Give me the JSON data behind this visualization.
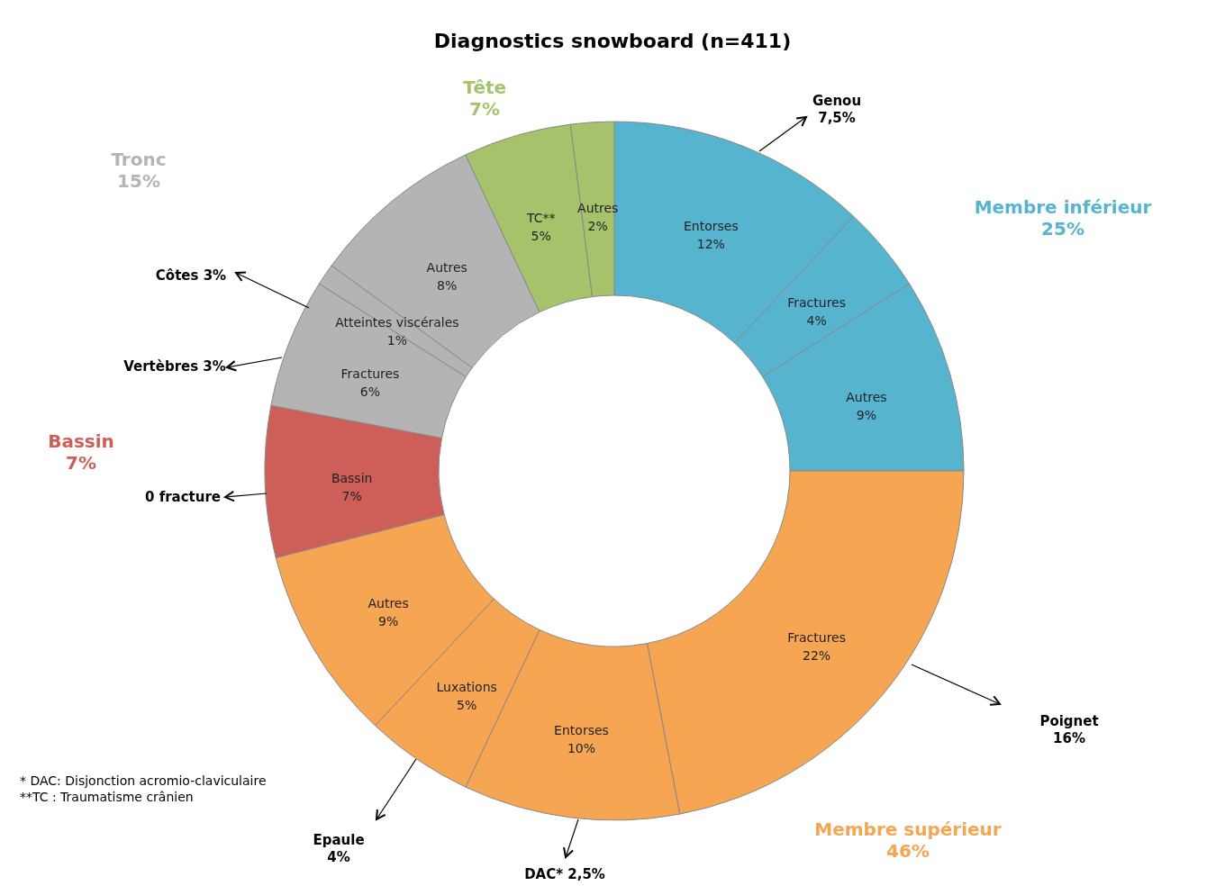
{
  "chart_data": {
    "type": "donut",
    "title": "Diagnostics snowboard (n=411)",
    "categories": [
      "Entorses",
      "Fractures",
      "Autres",
      "Fractures",
      "Entorses",
      "Luxations",
      "Autres",
      "Bassin",
      "Fractures",
      "Atteintes viscérales",
      "Autres",
      "TC**",
      "Autres"
    ],
    "values": [
      12,
      4,
      9,
      22,
      10,
      5,
      9,
      7,
      6,
      1,
      8,
      5,
      2
    ],
    "value_labels": [
      "12%",
      "4%",
      "9%",
      "22%",
      "10%",
      "5%",
      "9%",
      "7%",
      "6%",
      "1%",
      "8%",
      "5%",
      "2%"
    ],
    "colors": [
      "#56b4cf",
      "#56b4cf",
      "#56b4cf",
      "#f6a552",
      "#f6a552",
      "#f6a552",
      "#f6a552",
      "#cd5f58",
      "#b4b4b4",
      "#b4b4b4",
      "#b4b4b4",
      "#a6c26a",
      "#a6c26a"
    ],
    "annotations": [
      "Tête\n7%",
      "Membre inférieur\n25%",
      "Membre  supérieur\n46%",
      "Bassin\n7%",
      "Tronc\n15%",
      "Genou\n7,5%",
      "Poignet\n16%",
      "DAC* 2,5%",
      "Epaule\n4%",
      "0 fracture",
      "Vertèbres 3%",
      "Côtes 3%",
      "* DAC: Disjonction acromio-claviculaire",
      "**TC : Traumatisme crânien"
    ]
  }
}
